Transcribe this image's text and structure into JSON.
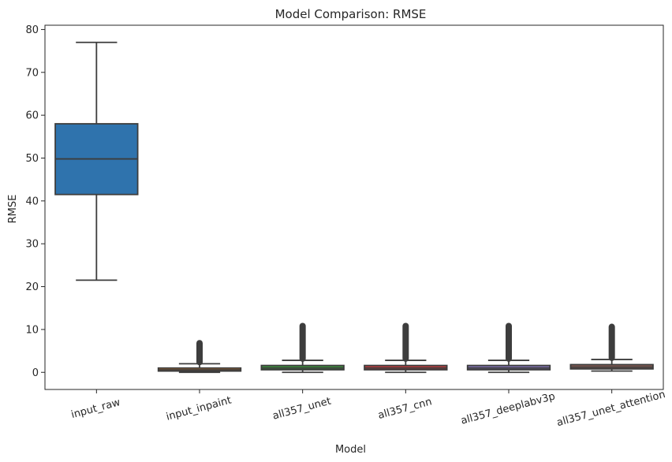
{
  "chart_data": {
    "type": "box",
    "title": "Model Comparison: RMSE",
    "xlabel": "Model",
    "ylabel": "RMSE",
    "ylim": [
      -4,
      81
    ],
    "yticks": [
      0,
      10,
      20,
      30,
      40,
      50,
      60,
      70,
      80
    ],
    "grid": false,
    "legend": "none",
    "categories": [
      "input_raw",
      "input_inpaint",
      "all357_unet",
      "all357_cnn",
      "all357_deeplabv3p",
      "all357_unet_attention"
    ],
    "boxes": [
      {
        "name": "input_raw",
        "color": "#2f73ad",
        "whisker_low": 21.5,
        "q1": 41.5,
        "median": 49.8,
        "q3": 58.0,
        "whisker_high": 77.0,
        "outliers_low": null,
        "outliers_high": null
      },
      {
        "name": "input_inpaint",
        "color": "#e1812c",
        "whisker_low": 0.0,
        "q1": 0.3,
        "median": 0.6,
        "q3": 1.0,
        "whisker_high": 2.0,
        "outliers_low": 2.2,
        "outliers_high": 7.0
      },
      {
        "name": "all357_unet",
        "color": "#3a923a",
        "whisker_low": 0.0,
        "q1": 0.6,
        "median": 1.0,
        "q3": 1.6,
        "whisker_high": 2.8,
        "outliers_low": 3.0,
        "outliers_high": 11.0
      },
      {
        "name": "all357_cnn",
        "color": "#c03d3e",
        "whisker_low": 0.0,
        "q1": 0.6,
        "median": 1.0,
        "q3": 1.6,
        "whisker_high": 2.8,
        "outliers_low": 3.0,
        "outliers_high": 11.0
      },
      {
        "name": "all357_deeplabv3p",
        "color": "#8172b3",
        "whisker_low": 0.0,
        "q1": 0.6,
        "median": 1.0,
        "q3": 1.6,
        "whisker_high": 2.8,
        "outliers_low": 3.0,
        "outliers_high": 11.0
      },
      {
        "name": "all357_unet_attention",
        "color": "#845b53",
        "whisker_low": 0.3,
        "q1": 0.8,
        "median": 1.2,
        "q3": 1.8,
        "whisker_high": 3.0,
        "outliers_low": 3.2,
        "outliers_high": 10.8
      }
    ]
  }
}
